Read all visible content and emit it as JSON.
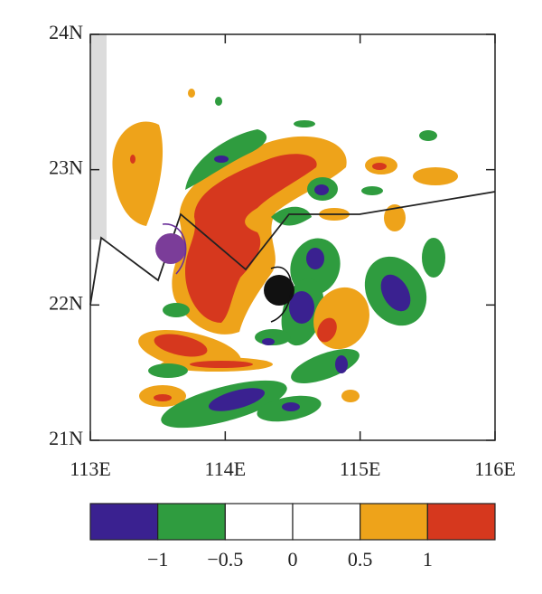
{
  "chart_data": {
    "type": "contour-map",
    "xlim": [
      113,
      116
    ],
    "xticks": [
      {
        "value": 113,
        "label": "113E"
      },
      {
        "value": 114,
        "label": "114E"
      },
      {
        "value": 115,
        "label": "115E"
      },
      {
        "value": 116,
        "label": "116E"
      }
    ],
    "ylim": [
      21,
      24
    ],
    "yticks": [
      {
        "value": 24,
        "label": "24N"
      },
      {
        "value": 23,
        "label": "23N"
      },
      {
        "value": 22,
        "label": "22N"
      },
      {
        "value": 21,
        "label": "21N"
      }
    ],
    "colorbar": {
      "colors": [
        "#3a2190",
        "#2f9c3f",
        "#ffffff",
        "#ffffff",
        "#eea31a",
        "#d6381e"
      ],
      "ticks": [
        {
          "value": -1,
          "label": "−1"
        },
        {
          "value": -0.5,
          "label": "−0.5"
        },
        0,
        0.5,
        1
      ]
    }
  }
}
